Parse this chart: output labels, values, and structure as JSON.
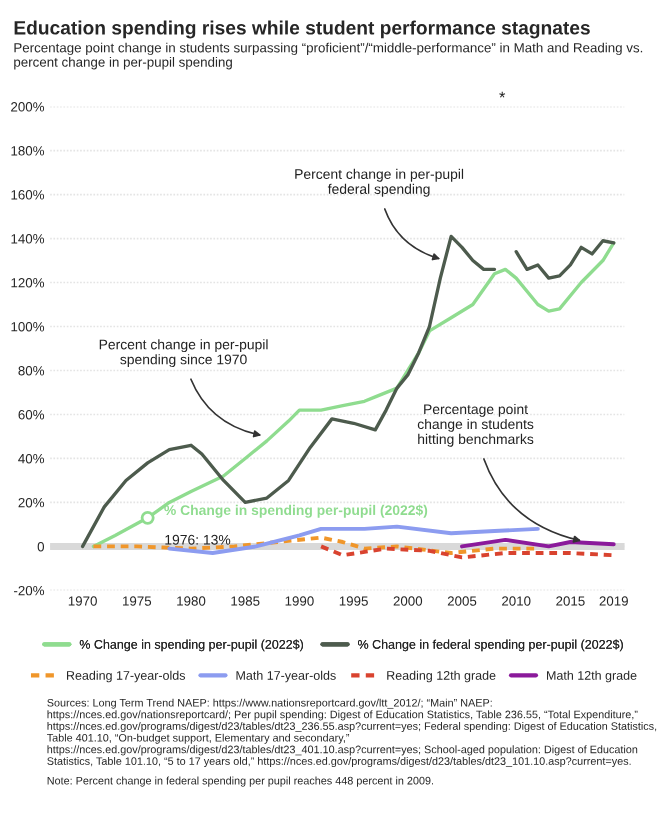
{
  "chart_data": {
    "type": "line",
    "title": "Education spending rises while student performance stagnates",
    "subtitle": "Percentage point change in students surpassing “proficient”/“middle-performance” in Math and Reading vs. percent change in per-pupil spending",
    "series": [
      {
        "name": "% Change in spending per-pupil (2022$)",
        "color": "#8fdc8f",
        "x": [
          1971,
          1973,
          1976,
          1978,
          1980,
          1983,
          1985,
          1987,
          1989,
          1990,
          1992,
          1994,
          1996,
          1997,
          1999,
          2000,
          2001,
          2002,
          2004,
          2006,
          2008,
          2009,
          2010,
          2012,
          2013,
          2014,
          2016,
          2018,
          2019
        ],
        "values": [
          0,
          5,
          13,
          20,
          25,
          32,
          40,
          48,
          57,
          62,
          62,
          64,
          66,
          68,
          72,
          80,
          88,
          98,
          104,
          110,
          124,
          126,
          122,
          110,
          107,
          108,
          120,
          130,
          138
        ]
      },
      {
        "name": "% Change in federal spending per-pupil (2022$)",
        "color": "#4d5b4d",
        "x": [
          1970,
          1972,
          1974,
          1976,
          1978,
          1980,
          1981,
          1983,
          1985,
          1987,
          1989,
          1991,
          1993,
          1995,
          1997,
          1998,
          1999,
          2000,
          2001,
          2002,
          2003,
          2004,
          2005,
          2006,
          2007,
          2008,
          2009,
          2010,
          2011,
          2012,
          2013,
          2014,
          2015,
          2016,
          2017,
          2018,
          2019
        ],
        "values": [
          0,
          18,
          30,
          38,
          44,
          46,
          42,
          30,
          20,
          22,
          30,
          45,
          58,
          56,
          53,
          62,
          72,
          78,
          88,
          100,
          122,
          141,
          136,
          130,
          126,
          126,
          null,
          134,
          126,
          128,
          122,
          123,
          128,
          136,
          133,
          139,
          138
        ]
      },
      {
        "name": "Reading 17-year-olds",
        "color": "#f0962a",
        "line_style": "dashed",
        "x": [
          1971,
          1975,
          1980,
          1984,
          1988,
          1992,
          1994,
          1996,
          1999,
          2004,
          2008,
          2012
        ],
        "values": [
          0,
          0,
          -1,
          0,
          2,
          4,
          2,
          -1,
          0,
          -3,
          -1,
          -1
        ]
      },
      {
        "name": "Math 17-year-olds",
        "color": "#8c9cf0",
        "x": [
          1978,
          1982,
          1986,
          1990,
          1992,
          1996,
          1999,
          2004,
          2008,
          2012
        ],
        "values": [
          -1,
          -3,
          0,
          5,
          8,
          8,
          9,
          6,
          7,
          8
        ]
      },
      {
        "name": "Reading 12th grade",
        "color": "#d9432f",
        "line_style": "dashed",
        "x": [
          1992,
          1994,
          1998,
          2002,
          2005,
          2009,
          2013,
          2015,
          2019
        ],
        "values": [
          0,
          -4,
          -1,
          -2,
          -5,
          -3,
          -3,
          -3,
          -4
        ]
      },
      {
        "name": "Math 12th grade",
        "color": "#8b1a9b",
        "x": [
          2005,
          2009,
          2013,
          2015,
          2019
        ],
        "values": [
          0,
          3,
          0,
          2,
          1
        ]
      }
    ],
    "xlim": [
      1967,
      2020
    ],
    "xticks": [
      1970,
      1975,
      1980,
      1985,
      1990,
      1995,
      2000,
      2005,
      2010,
      2015,
      2019
    ],
    "ylim": [
      -20,
      200
    ],
    "yticks": [
      {
        "value": -20,
        "label": "-20%"
      },
      {
        "value": 0,
        "label": "0"
      },
      {
        "value": 20,
        "label": "20%"
      },
      {
        "value": 40,
        "label": "40%"
      },
      {
        "value": 60,
        "label": "60%"
      },
      {
        "value": 80,
        "label": "80%"
      },
      {
        "value": 100,
        "label": "100%"
      },
      {
        "value": 120,
        "label": "120%"
      },
      {
        "value": 140,
        "label": "140%"
      },
      {
        "value": 160,
        "label": "160%"
      },
      {
        "value": 180,
        "label": "180%"
      },
      {
        "value": 200,
        "label": "200%"
      }
    ],
    "ref_lines": [
      {
        "axis": "y",
        "value": 0,
        "color": "#d9d9d9"
      }
    ],
    "grid": "y",
    "legend": "bottom",
    "line_style": "solid",
    "annotations": [
      {
        "text": "Percent change in per-pupil\nfederal spending",
        "x": 2003.5,
        "y": 130
      },
      {
        "text": "Percent change in per-pupil\nspending since 1970",
        "x": 1987,
        "y": 50
      },
      {
        "text": "Percentage point\nchange in students\nhitting benchmarks",
        "x": 2016.5,
        "y": 2
      },
      {
        "text": "% Change in spending per-pupil (2022$)",
        "x": 1977.5,
        "y": 16
      },
      {
        "text": "1976: 13%",
        "x": 1976,
        "y": 13
      },
      "*",
      "Sources: Long Term Trend NAEP: https://www.nationsreportcard.gov/ltt_2012/; “Main” NAEP: https://nces.ed.gov/nationsreportcard/; Per pupil spending: Digest of Education Statistics, Table 236.55, “Total Expenditure,” https://nces.ed.gov/programs/digest/d23/tables/dt23_236.55.asp?current=yes; Federal spending: Digest of Education Statistics, Table 401.10, “On-budget support, Elementary and secondary,” https://nces.ed.gov/programs/digest/d23/tables/dt23_401.10.asp?current=yes; School-aged population: Digest of Education Statistics, Table 101.10, “5 to 17 years old,” https://nces.ed.gov/programs/digest/d23/tables/dt23_101.10.asp?current=yes.",
      "Note: Percent change in federal spending per pupil reaches 448 percent in 2009."
    ]
  }
}
